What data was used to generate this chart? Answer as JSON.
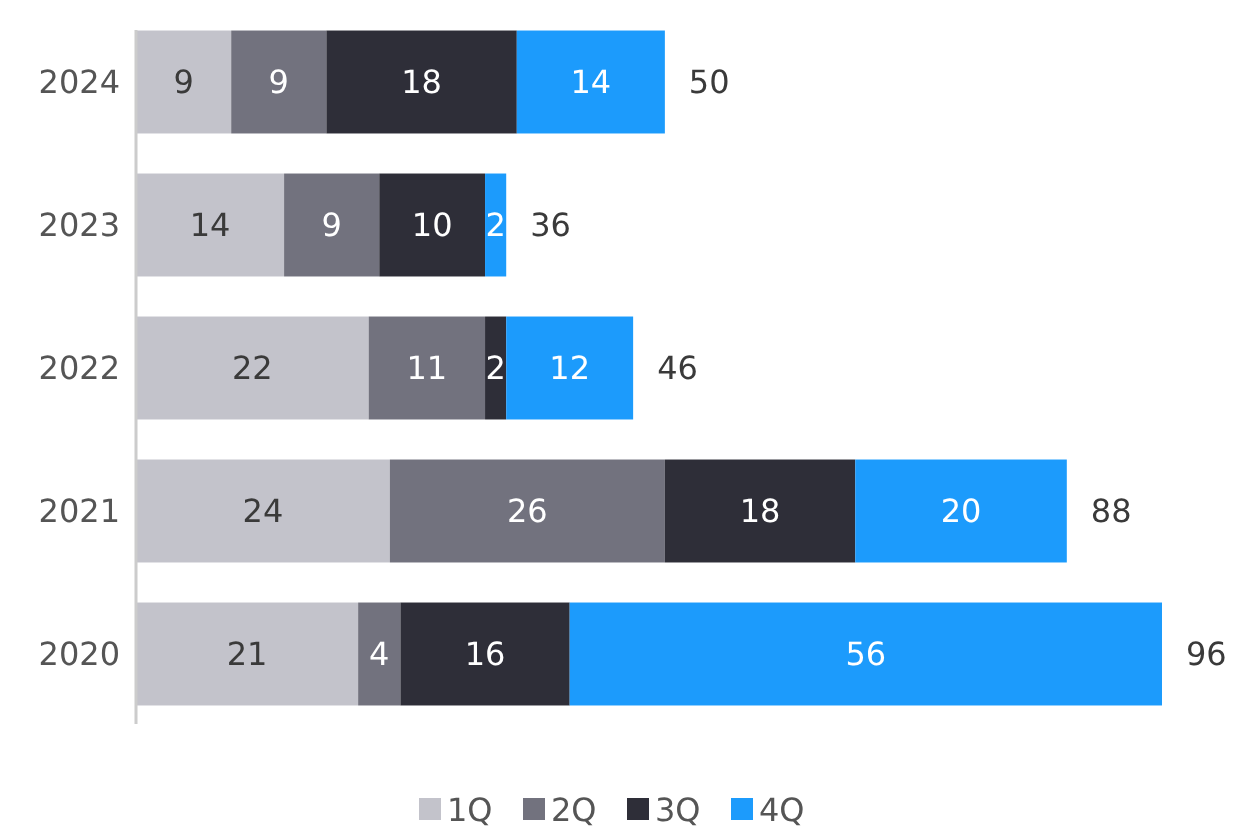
{
  "chart_data": {
    "type": "bar",
    "orientation": "horizontal",
    "stacked": true,
    "categories": [
      "2024",
      "2023",
      "2022",
      "2021",
      "2020"
    ],
    "series": [
      {
        "name": "1Q",
        "color": "#c3c3cb",
        "values": [
          9,
          14,
          22,
          24,
          21
        ]
      },
      {
        "name": "2Q",
        "color": "#72727e",
        "values": [
          9,
          9,
          11,
          26,
          4
        ]
      },
      {
        "name": "3Q",
        "color": "#2e2e38",
        "values": [
          18,
          10,
          2,
          18,
          16
        ]
      },
      {
        "name": "4Q",
        "color": "#1c9bfc",
        "values": [
          14,
          2,
          12,
          20,
          56
        ]
      }
    ],
    "data_labels": true,
    "totals": [
      "50",
      "36",
      "46",
      "88",
      "96"
    ],
    "legend": "bottom"
  }
}
